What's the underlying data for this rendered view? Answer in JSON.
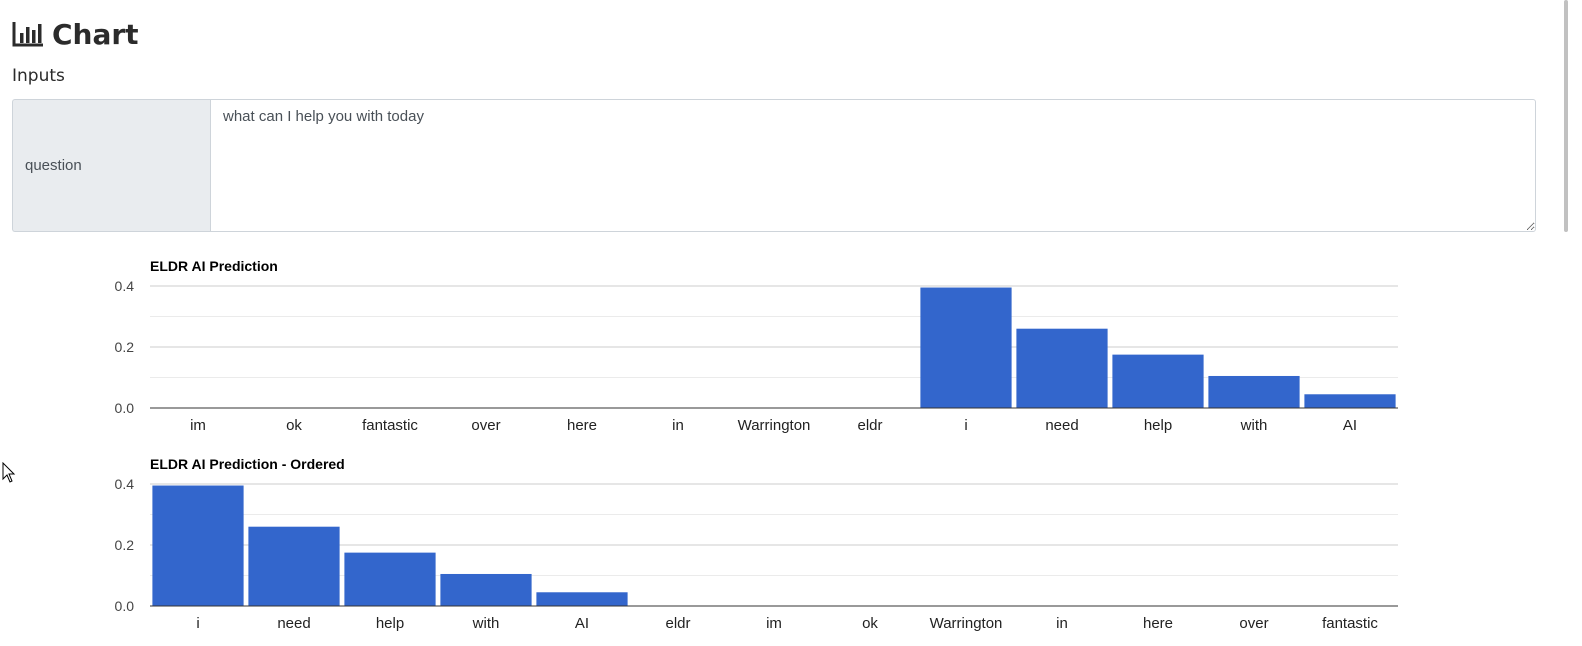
{
  "page": {
    "title": "Chart",
    "title_icon": "bar-chart-icon",
    "inputs_label": "Inputs"
  },
  "inputs": {
    "question_label": "question",
    "question_value": "what can I help you with today"
  },
  "colors": {
    "bar": "#3366cc",
    "grid": "#cccccc",
    "minor_grid": "#ebebeb",
    "axis": "#333333"
  },
  "chart_data": [
    {
      "type": "bar",
      "title": "ELDR AI Prediction",
      "categories": [
        "im",
        "ok",
        "fantastic",
        "over",
        "here",
        "in",
        "Warrington",
        "eldr",
        "i",
        "need",
        "help",
        "with",
        "AI"
      ],
      "values": [
        0,
        0,
        0,
        0,
        0,
        0,
        0,
        0,
        0.395,
        0.26,
        0.175,
        0.105,
        0.045
      ],
      "ylim": [
        0,
        0.4
      ],
      "yticks": [
        "0.0",
        "0.2",
        "0.4"
      ],
      "grid": true,
      "legend": "none"
    },
    {
      "type": "bar",
      "title": "ELDR AI Prediction - Ordered",
      "categories": [
        "i",
        "need",
        "help",
        "with",
        "AI",
        "eldr",
        "im",
        "ok",
        "Warrington",
        "in",
        "here",
        "over",
        "fantastic"
      ],
      "values": [
        0.395,
        0.26,
        0.175,
        0.105,
        0.045,
        0,
        0,
        0,
        0,
        0,
        0,
        0,
        0
      ],
      "ylim": [
        0,
        0.4
      ],
      "yticks": [
        "0.0",
        "0.2",
        "0.4"
      ],
      "grid": true,
      "legend": "none"
    }
  ]
}
